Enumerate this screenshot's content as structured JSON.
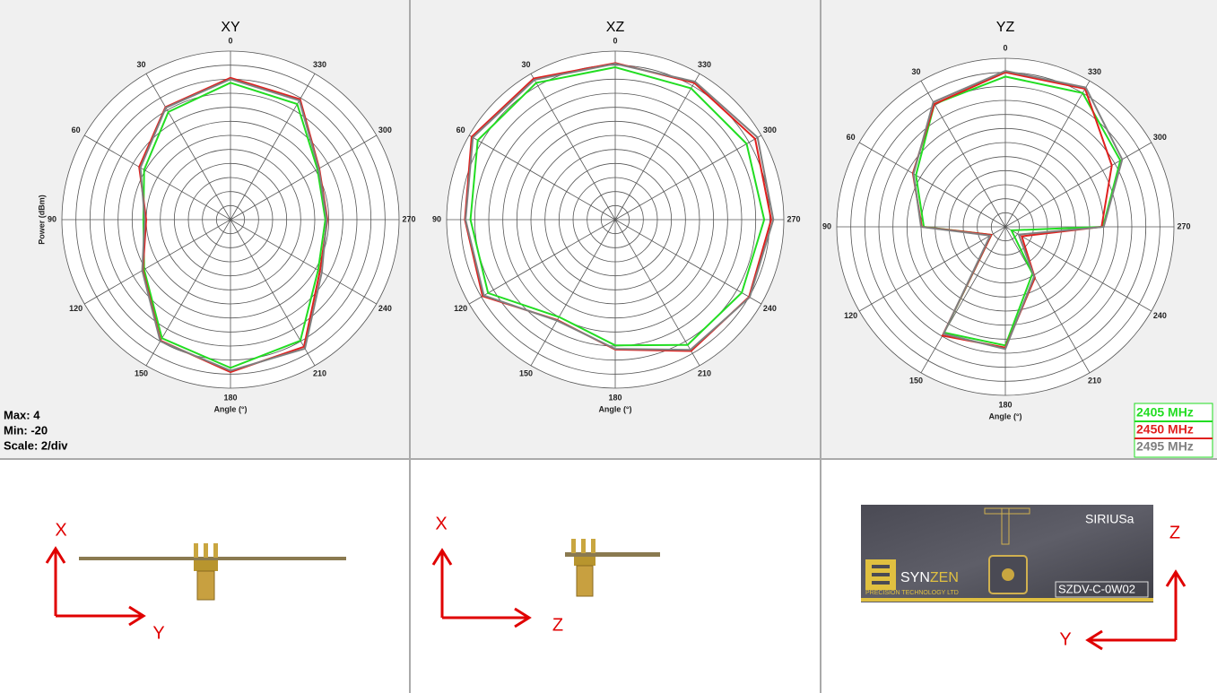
{
  "chart_data": [
    {
      "type": "polar",
      "title": "XY",
      "xlabel": "Angle (°)",
      "ylabel": "Power (dBm)",
      "theta": [
        0,
        30,
        60,
        90,
        120,
        150,
        180,
        210,
        240,
        270,
        300,
        330
      ],
      "rlim": [
        -20,
        4
      ],
      "rticks": [
        -20,
        -18,
        -16,
        -14,
        -12,
        -10,
        -8,
        -6,
        -4,
        -2,
        0,
        2,
        4
      ],
      "series": [
        {
          "color": "#22dd22",
          "values": [
            -0.5,
            -2.3,
            -5.8,
            -7.6,
            -5.8,
            -0.5,
            1.1,
            -0.1,
            -5.6,
            -6.5,
            -5.7,
            -1.0
          ]
        },
        {
          "color": "#e0201e",
          "values": [
            0.2,
            -1.5,
            -5,
            -8,
            -5.6,
            -0.1,
            1.7,
            0.9,
            -5.3,
            -6.2,
            -5.4,
            -0.2
          ]
        },
        {
          "color": "#808080",
          "values": [
            0,
            -1.6,
            -5.2,
            -7.8,
            -5.5,
            0,
            1.5,
            1.2,
            -5.0,
            -6.3,
            -5.5,
            -0.4
          ]
        }
      ]
    },
    {
      "type": "polar",
      "title": "XZ",
      "xlabel": "Angle (°)",
      "theta": [
        0,
        30,
        60,
        90,
        120,
        150,
        180,
        210,
        240,
        270,
        300,
        330
      ],
      "rlim": [
        -20,
        4
      ],
      "rticks": [
        -20,
        -18,
        -16,
        -14,
        -12,
        -10,
        -8,
        -6,
        -4,
        -2,
        0,
        2,
        4
      ],
      "series": [
        {
          "color": "#22dd22",
          "values": [
            1.7,
            2.5,
            2.6,
            0.6,
            0.9,
            -4,
            -2.1,
            0.6,
            0.8,
            1.2,
            1.6,
            1.6
          ]
        },
        {
          "color": "#e0201e",
          "values": [
            2.3,
            3.2,
            3.6,
            1.4,
            1.8,
            -3.5,
            -1.5,
            1.6,
            2.0,
            2.2,
            3.0,
            2.5
          ]
        },
        {
          "color": "#808080",
          "values": [
            2.2,
            3.0,
            3.4,
            1.3,
            1.6,
            -3.4,
            -1.6,
            1.4,
            2.1,
            2.5,
            3.4,
            2.7
          ]
        }
      ]
    },
    {
      "type": "polar",
      "title": "YZ",
      "xlabel": "Angle (°)",
      "theta": [
        0,
        30,
        60,
        90,
        120,
        150,
        180,
        210,
        240,
        270,
        300,
        330
      ],
      "rlim": [
        -20,
        4
      ],
      "rticks": [
        -20,
        -18,
        -16,
        -14,
        -12,
        -10,
        -8,
        -6,
        -4,
        -2,
        0,
        2,
        4
      ],
      "series": [
        {
          "color": "#22dd22",
          "values": [
            1.4,
            0.2,
            -5.3,
            -8.4,
            -17.7,
            -2.6,
            -3.1,
            -12.3,
            -19,
            -6.1,
            -1.1,
            2
          ]
        },
        {
          "color": "#e0201e",
          "values": [
            2,
            0.2,
            -4.8,
            -8.1,
            -17.7,
            -2.1,
            -2.8,
            -11.6,
            -17.3,
            -6.3,
            -2.5,
            2.7
          ]
        },
        {
          "color": "#808080",
          "values": [
            2.2,
            0.5,
            -4.9,
            -8.0,
            -17.5,
            -2.4,
            -2.6,
            -11.8,
            -17.8,
            -6.0,
            -0.8,
            2.9
          ]
        }
      ]
    }
  ],
  "legend": [
    {
      "name": "2405 MHz",
      "color": "#22dd22"
    },
    {
      "name": "2450 MHz",
      "color": "#e0201e"
    },
    {
      "name": "2495 MHz",
      "color": "#808080"
    }
  ],
  "scale_info": [
    "Max: 4",
    "Min: -20",
    "Scale: 2/div"
  ],
  "views": [
    {
      "vertical": "X",
      "horizontal": "Y"
    },
    {
      "vertical": "X",
      "horizontal": "Z"
    },
    {
      "vertical": "Z",
      "horizontal": "Y"
    }
  ],
  "board": {
    "name": "SIRIUSa",
    "brand1": "SYN",
    "brand2": "ZEN",
    "tagline": "PRECISION TECHNOLOGY LTD",
    "part": "SZDV-C-0W02"
  }
}
